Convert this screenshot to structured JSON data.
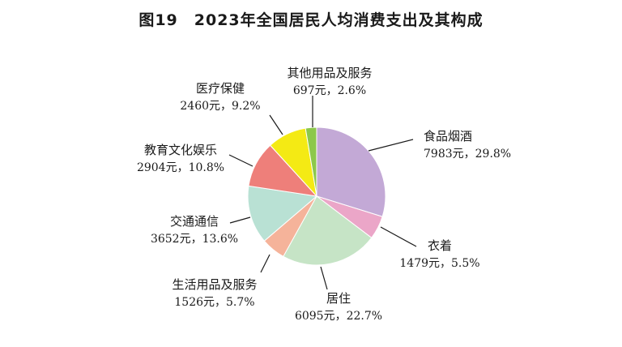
{
  "title": "图19　2023年全国居民人均消费支出及其构成",
  "chart_data": {
    "type": "pie",
    "title": "图19　2023年全国居民人均消费支出及其构成",
    "start_angle_deg": 0,
    "direction": "clockwise",
    "slices": [
      {
        "name": "食品烟酒",
        "value": 7983,
        "percent": 29.8,
        "value_label": "7983元，29.8%",
        "color": "#c3a9d6"
      },
      {
        "name": "衣着",
        "value": 1479,
        "percent": 5.5,
        "value_label": "1479元，5.5%",
        "color": "#eba6c8"
      },
      {
        "name": "居住",
        "value": 6095,
        "percent": 22.7,
        "value_label": "6095元，22.7%",
        "color": "#c6e4c6"
      },
      {
        "name": "生活用品及服务",
        "value": 1526,
        "percent": 5.7,
        "value_label": "1526元，5.7%",
        "color": "#f5b39a"
      },
      {
        "name": "交通通信",
        "value": 3652,
        "percent": 13.6,
        "value_label": "3652元，13.6%",
        "color": "#b9e1d4"
      },
      {
        "name": "教育文化娱乐",
        "value": 2904,
        "percent": 10.8,
        "value_label": "2904元，10.8%",
        "color": "#ee7f7a"
      },
      {
        "name": "医疗保健",
        "value": 2460,
        "percent": 9.2,
        "value_label": "2460元，9.2%",
        "color": "#f4ea14"
      },
      {
        "name": "其他用品及服务",
        "value": 697,
        "percent": 2.6,
        "value_label": "697元，2.6%",
        "color": "#8cc84b"
      }
    ]
  }
}
